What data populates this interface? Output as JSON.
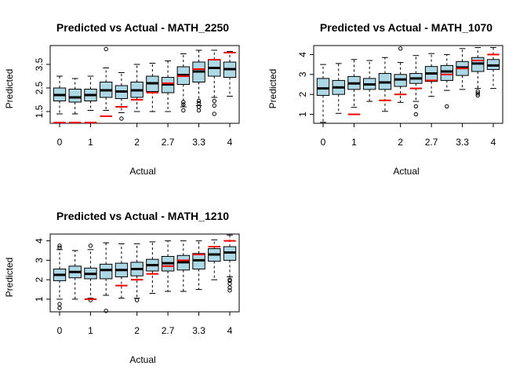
{
  "chart_data": [
    {
      "type": "boxplot",
      "title": "Predicted vs Actual - MATH_2250",
      "xlabel": "Actual",
      "ylabel": "Predicted",
      "x_tick_labels": [
        "0",
        "1",
        "2",
        "2.7",
        "3.3",
        "4"
      ],
      "y_tick_labels": [
        "1.5",
        "2.5",
        "3.5"
      ],
      "ylim": [
        1.0,
        4.3
      ],
      "categories": [
        "0",
        "0.7",
        "1",
        "1.3",
        "1.7",
        "2",
        "2.3",
        "2.7",
        "3",
        "3.3",
        "3.7",
        "4"
      ],
      "boxes": [
        {
          "actual": 0,
          "min": 1.4,
          "q1": 1.95,
          "median": 2.2,
          "q3": 2.5,
          "max": 3.0,
          "outliers": []
        },
        {
          "actual": 0.7,
          "min": 1.4,
          "q1": 1.9,
          "median": 2.1,
          "q3": 2.45,
          "max": 2.9,
          "outliers": []
        },
        {
          "actual": 1,
          "min": 1.55,
          "q1": 1.95,
          "median": 2.2,
          "q3": 2.45,
          "max": 3.0,
          "outliers": []
        },
        {
          "actual": 1.3,
          "min": 1.55,
          "q1": 2.1,
          "median": 2.4,
          "q3": 2.75,
          "max": 3.35,
          "outliers": [
            4.15
          ]
        },
        {
          "actual": 1.7,
          "min": 1.45,
          "q1": 2.05,
          "median": 2.35,
          "q3": 2.6,
          "max": 3.15,
          "outliers": [
            1.2
          ]
        },
        {
          "actual": 2,
          "min": 1.5,
          "q1": 2.1,
          "median": 2.4,
          "q3": 2.75,
          "max": 3.5,
          "outliers": []
        },
        {
          "actual": 2.3,
          "min": 1.5,
          "q1": 2.35,
          "median": 2.7,
          "q3": 3.0,
          "max": 3.55,
          "outliers": []
        },
        {
          "actual": 2.7,
          "min": 1.5,
          "q1": 2.3,
          "median": 2.65,
          "q3": 2.95,
          "max": 3.65,
          "outliers": []
        },
        {
          "actual": 3,
          "min": 1.7,
          "q1": 2.65,
          "median": 3.05,
          "q3": 3.4,
          "max": 3.95,
          "outliers": [
            1.55,
            1.8,
            1.9
          ]
        },
        {
          "actual": 3.3,
          "min": 1.75,
          "q1": 2.75,
          "median": 3.2,
          "q3": 3.6,
          "max": 4.1,
          "outliers": [
            1.55,
            1.7,
            1.85,
            1.95
          ]
        },
        {
          "actual": 3.7,
          "min": 2.1,
          "q1": 3.0,
          "median": 3.35,
          "q3": 3.7,
          "max": 4.1,
          "outliers": [
            1.4,
            1.75,
            1.95
          ]
        },
        {
          "actual": 4,
          "min": 2.15,
          "q1": 2.95,
          "median": 3.3,
          "q3": 3.6,
          "max": 4.05,
          "outliers": []
        }
      ],
      "actual_markers": [
        0,
        0.7,
        1,
        1.3,
        1.7,
        2,
        2.3,
        2.7,
        3,
        3.3,
        3.7,
        4
      ]
    },
    {
      "type": "boxplot",
      "title": "Predicted vs Actual - MATH_1070",
      "xlabel": "Actual",
      "ylabel": "Predicted",
      "x_tick_labels": [
        "0",
        "1",
        "2",
        "2.7",
        "3.3",
        "4"
      ],
      "y_tick_labels": [
        "1",
        "2",
        "3",
        "4"
      ],
      "ylim": [
        0.55,
        4.45
      ],
      "categories": [
        "0",
        "0.7",
        "1",
        "1.3",
        "1.7",
        "2",
        "2.3",
        "2.7",
        "3",
        "3.3",
        "3.7",
        "4"
      ],
      "boxes": [
        {
          "actual": 0,
          "min": 0.6,
          "q1": 1.95,
          "median": 2.3,
          "q3": 2.8,
          "max": 3.5,
          "outliers": []
        },
        {
          "actual": 0.7,
          "min": 1.05,
          "q1": 2.0,
          "median": 2.35,
          "q3": 2.7,
          "max": 3.55,
          "outliers": []
        },
        {
          "actual": 1,
          "min": 1.35,
          "q1": 2.25,
          "median": 2.55,
          "q3": 2.9,
          "max": 3.75,
          "outliers": []
        },
        {
          "actual": 1.3,
          "min": 1.65,
          "q1": 2.25,
          "median": 2.5,
          "q3": 2.8,
          "max": 3.7,
          "outliers": []
        },
        {
          "actual": 1.7,
          "min": 1.15,
          "q1": 2.25,
          "median": 2.6,
          "q3": 3.05,
          "max": 3.85,
          "outliers": []
        },
        {
          "actual": 2,
          "min": 1.6,
          "q1": 2.4,
          "median": 2.75,
          "q3": 3.0,
          "max": 3.6,
          "outliers": [
            4.3
          ]
        },
        {
          "actual": 2.3,
          "min": 1.65,
          "q1": 2.55,
          "median": 2.8,
          "q3": 3.05,
          "max": 3.95,
          "outliers": [
            1.0,
            1.4
          ]
        },
        {
          "actual": 2.7,
          "min": 1.9,
          "q1": 2.65,
          "median": 3.05,
          "q3": 3.4,
          "max": 4.05,
          "outliers": []
        },
        {
          "actual": 3,
          "min": 2.2,
          "q1": 2.7,
          "median": 3.15,
          "q3": 3.45,
          "max": 4.0,
          "outliers": [
            1.4
          ]
        },
        {
          "actual": 3.3,
          "min": 2.25,
          "q1": 2.95,
          "median": 3.35,
          "q3": 3.65,
          "max": 4.3,
          "outliers": []
        },
        {
          "actual": 3.7,
          "min": 2.3,
          "q1": 3.15,
          "median": 3.55,
          "q3": 3.85,
          "max": 4.35,
          "outliers": [
            1.95,
            2.05,
            2.15
          ]
        },
        {
          "actual": 4,
          "min": 2.3,
          "q1": 3.25,
          "median": 3.45,
          "q3": 3.75,
          "max": 4.35,
          "outliers": []
        }
      ],
      "actual_markers": [
        1,
        1.7,
        2,
        2.3,
        2.7,
        3,
        3.3,
        3.7,
        4
      ]
    },
    {
      "type": "boxplot",
      "title": "Predicted vs Actual - MATH_1210",
      "xlabel": "Actual",
      "ylabel": "Predicted",
      "x_tick_labels": [
        "0",
        "1",
        "2",
        "2.7",
        "3.3",
        "4"
      ],
      "y_tick_labels": [
        "1",
        "2",
        "3",
        "4"
      ],
      "ylim": [
        0.35,
        4.35
      ],
      "categories": [
        "0",
        "0.7",
        "1",
        "1.3",
        "1.7",
        "2",
        "2.3",
        "2.7",
        "3",
        "3.3",
        "3.7",
        "4"
      ],
      "boxes": [
        {
          "actual": 0,
          "min": 1.0,
          "q1": 1.95,
          "median": 2.25,
          "q3": 2.55,
          "max": 3.55,
          "outliers": [
            0.55,
            0.75,
            3.65,
            3.75
          ]
        },
        {
          "actual": 0.7,
          "min": 1.0,
          "q1": 2.1,
          "median": 2.4,
          "q3": 2.7,
          "max": 3.5,
          "outliers": []
        },
        {
          "actual": 1,
          "min": 1.05,
          "q1": 2.05,
          "median": 2.3,
          "q3": 2.6,
          "max": 3.55,
          "outliers": [
            0.95,
            3.75
          ]
        },
        {
          "actual": 1.3,
          "min": 1.2,
          "q1": 2.05,
          "median": 2.5,
          "q3": 2.8,
          "max": 3.9,
          "outliers": [
            0.4
          ]
        },
        {
          "actual": 1.7,
          "min": 1.05,
          "q1": 2.15,
          "median": 2.5,
          "q3": 2.85,
          "max": 3.85,
          "outliers": []
        },
        {
          "actual": 2,
          "min": 1.05,
          "q1": 2.2,
          "median": 2.55,
          "q3": 2.9,
          "max": 3.85,
          "outliers": [
            0.95
          ]
        },
        {
          "actual": 2.3,
          "min": 1.3,
          "q1": 2.45,
          "median": 2.75,
          "q3": 3.05,
          "max": 3.95,
          "outliers": []
        },
        {
          "actual": 2.7,
          "min": 1.4,
          "q1": 2.45,
          "median": 2.85,
          "q3": 3.2,
          "max": 4.0,
          "outliers": []
        },
        {
          "actual": 3,
          "min": 1.4,
          "q1": 2.5,
          "median": 2.9,
          "q3": 3.25,
          "max": 4.0,
          "outliers": []
        },
        {
          "actual": 3.3,
          "min": 1.5,
          "q1": 2.55,
          "median": 3.0,
          "q3": 3.35,
          "max": 4.0,
          "outliers": []
        },
        {
          "actual": 3.7,
          "min": 2.0,
          "q1": 2.95,
          "median": 3.3,
          "q3": 3.6,
          "max": 4.05,
          "outliers": []
        },
        {
          "actual": 4,
          "min": 2.15,
          "q1": 3.0,
          "median": 3.4,
          "q3": 3.7,
          "max": 4.3,
          "outliers": [
            1.45,
            1.6,
            1.8,
            1.95,
            2.0
          ]
        }
      ],
      "actual_markers": [
        1,
        1.7,
        2,
        2.3,
        2.7,
        3,
        3.3,
        3.7,
        4
      ]
    }
  ],
  "style": {
    "box_fill": "#add8e6",
    "marker_color": "#ff0000",
    "line_color": "#000000"
  }
}
